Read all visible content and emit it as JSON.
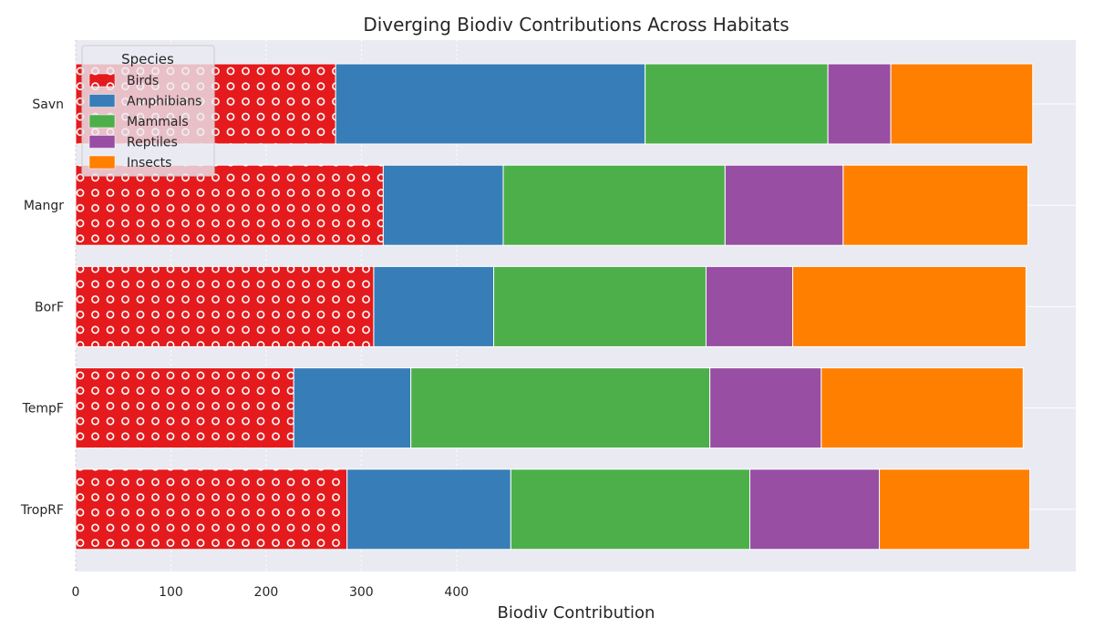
{
  "chart_data": {
    "type": "bar",
    "orientation": "horizontal",
    "stacked": true,
    "title": "Diverging Biodiv Contributions Across Habitats",
    "xlabel": "Biodiv Contribution",
    "ylabel": "",
    "categories": [
      "TropRF",
      "TempF",
      "BorF",
      "Mangr",
      "Savn"
    ],
    "series": [
      {
        "name": "Birds",
        "color": "#e41a1c",
        "hatch": "circles",
        "values": [
          285,
          229,
          313,
          323,
          273
        ]
      },
      {
        "name": "Amphibians",
        "color": "#377eb8",
        "values": [
          172,
          123,
          126,
          126,
          325
        ]
      },
      {
        "name": "Mammals",
        "color": "#4daf4a",
        "values": [
          251,
          314,
          223,
          233,
          192
        ]
      },
      {
        "name": "Reptiles",
        "color": "#984ea3",
        "values": [
          136,
          117,
          91,
          124,
          66
        ]
      },
      {
        "name": "Insects",
        "color": "#ff7f00",
        "values": [
          158,
          212,
          245,
          194,
          149
        ]
      }
    ],
    "xticks": [
      "0",
      "100",
      "200",
      "300",
      "400"
    ],
    "xtick_values": [
      0,
      100,
      200,
      300,
      400
    ],
    "xlim": [
      0,
      1055
    ],
    "legend": {
      "title": "Species",
      "placement": "top-left"
    },
    "grid": true,
    "background": "#eaeaf2"
  }
}
